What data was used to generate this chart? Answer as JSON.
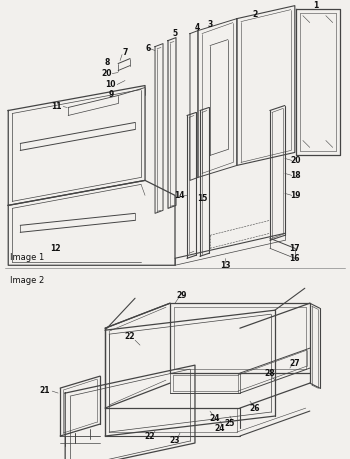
{
  "image1_label": "Image 1",
  "image2_label": "Image 2",
  "bg_color": "#f2f0ed",
  "line_color": "#444444",
  "text_color": "#111111",
  "label_fontsize": 5.5,
  "figsize": [
    3.5,
    4.59
  ],
  "dpi": 100
}
